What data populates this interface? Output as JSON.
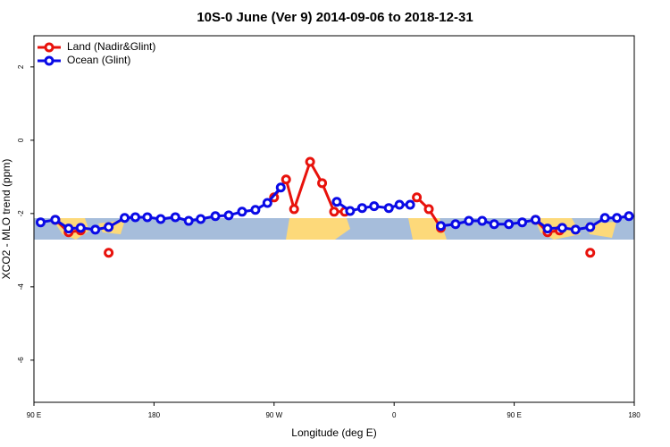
{
  "chart_data": {
    "type": "line",
    "title": "10S-0 June (Ver 9)   2014-09-06 to 2018-12-31",
    "x_label": "Longitude (deg E)",
    "y_label": "XCO2 - MLO trend (ppm)",
    "xlim": [
      90,
      540
    ],
    "ylim": [
      -7.15,
      2.85
    ],
    "xticks": [
      {
        "value": 90,
        "label": "90 E"
      },
      {
        "value": 180,
        "label": "180"
      },
      {
        "value": 270,
        "label": "90 W"
      },
      {
        "value": 360,
        "label": "0"
      },
      {
        "value": 450,
        "label": "90 E"
      },
      {
        "value": 540,
        "label": "180"
      }
    ],
    "yticks": [
      2,
      0,
      -2,
      -4,
      -6
    ],
    "grid": false,
    "legend": "top-left",
    "series": [
      {
        "name": "Land (Nadir&Glint)",
        "color": "#e8120c",
        "x": [
          106,
          116,
          125,
          null,
          146,
          null,
          270,
          279,
          285,
          297,
          306,
          315,
          323,
          null,
          377,
          386,
          395,
          null,
          466,
          475,
          484,
          null,
          507
        ],
        "values": [
          -2.17,
          -2.51,
          -2.46,
          null,
          -3.07,
          null,
          -1.56,
          -1.07,
          -1.88,
          -0.59,
          -1.17,
          -1.95,
          -1.95,
          null,
          -1.56,
          -1.88,
          -2.39,
          null,
          -2.17,
          -2.51,
          -2.46,
          null,
          -3.07
        ]
      },
      {
        "name": "Ocean (Glint)",
        "color": "#0a0ae6",
        "x": [
          95,
          106,
          116,
          125,
          136,
          146,
          158,
          166,
          175,
          185,
          196,
          206,
          215,
          226,
          236,
          246,
          256,
          265,
          275,
          null,
          317,
          327,
          336,
          345,
          356,
          364,
          372,
          null,
          395,
          406,
          416,
          426,
          435,
          446,
          456,
          466,
          475,
          486,
          496,
          507,
          518,
          527,
          536
        ],
        "values": [
          -2.24,
          -2.17,
          -2.41,
          -2.39,
          -2.44,
          -2.37,
          -2.12,
          -2.1,
          -2.1,
          -2.15,
          -2.1,
          -2.2,
          -2.15,
          -2.07,
          -2.05,
          -1.95,
          -1.9,
          -1.71,
          -1.29,
          null,
          -1.68,
          -1.93,
          -1.85,
          -1.8,
          -1.85,
          -1.76,
          -1.76,
          null,
          -2.34,
          -2.29,
          -2.2,
          -2.2,
          -2.29,
          -2.29,
          -2.24,
          -2.17,
          -2.41,
          -2.39,
          -2.44,
          -2.37,
          -2.12,
          -2.12,
          -2.07
        ]
      }
    ]
  }
}
